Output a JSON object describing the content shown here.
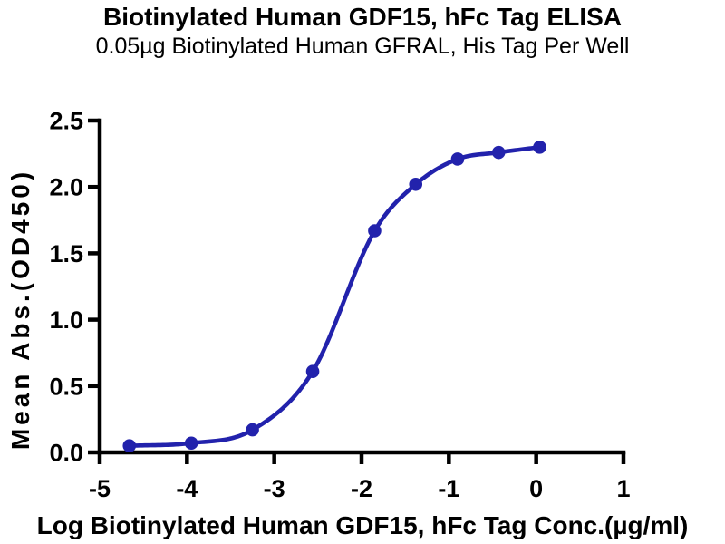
{
  "chart_data": {
    "type": "scatter",
    "title": "Biotinylated Human GDF15, hFc Tag ELISA",
    "subtitle": "0.05µg Biotinylated Human GFRAL, His Tag Per Well",
    "xlabel": "Log Biotinylated Human GDF15, hFc Tag Conc.(µg/ml)",
    "ylabel": "Mean Abs.(OD450)",
    "xlim": [
      -5,
      1
    ],
    "ylim": [
      0,
      2.5
    ],
    "x_ticks": [
      -5,
      -4,
      -3,
      -2,
      -1,
      0,
      1
    ],
    "x_tick_labels": [
      "-5",
      "-4",
      "-3",
      "-2",
      "-1",
      "0",
      "1"
    ],
    "y_ticks": [
      0,
      0.5,
      1,
      1.5,
      2,
      2.5
    ],
    "y_tick_labels": [
      "0.0",
      "0.5",
      "1.0",
      "1.5",
      "2.0",
      "2.5"
    ],
    "grid": false,
    "legend": "none",
    "curve": "smooth sigmoidal (4PL-style) fit through points",
    "series": [
      {
        "name": "Biotinylated Human GDF15, hFc Tag binding",
        "marker": "filled-circle",
        "color": "#2222AC",
        "points": [
          {
            "log_conc": -4.66,
            "od450": 0.05
          },
          {
            "log_conc": -3.95,
            "od450": 0.07
          },
          {
            "log_conc": -3.25,
            "od450": 0.17
          },
          {
            "log_conc": -2.56,
            "od450": 0.61
          },
          {
            "log_conc": -1.85,
            "od450": 1.67
          },
          {
            "log_conc": -1.38,
            "od450": 2.02
          },
          {
            "log_conc": -0.9,
            "od450": 2.21
          },
          {
            "log_conc": -0.43,
            "od450": 2.26
          },
          {
            "log_conc": 0.04,
            "od450": 2.3
          }
        ]
      }
    ],
    "colors": {
      "curve": "#2222AC",
      "axis": "#000000",
      "text": "#000000",
      "background": "#FFFFFF"
    }
  }
}
